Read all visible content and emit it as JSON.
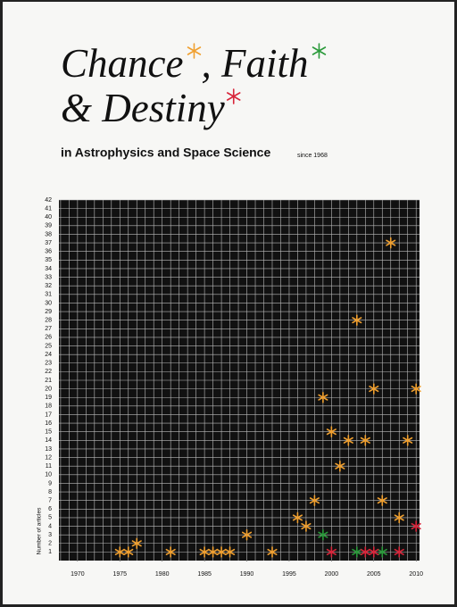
{
  "chart_data": {
    "type": "scatter",
    "title_lines": [
      "Chance",
      ", Faith",
      "& Destiny"
    ],
    "subtitle": "in Astrophysics and Space Science",
    "note": "since 1968",
    "ylabel": "Number of articles",
    "marker": "asterisk",
    "series": [
      {
        "color": "#f0a030",
        "x": [
          1975,
          1976,
          1977,
          1981,
          1985,
          1986,
          1987,
          1988,
          1990,
          1993,
          1996,
          1997,
          1998,
          1999,
          2000,
          2001,
          2002,
          2003,
          2004,
          2005,
          2006,
          2007,
          2008,
          2009,
          2010
        ],
        "values": [
          1,
          1,
          2,
          1,
          1,
          1,
          1,
          1,
          3,
          1,
          5,
          4,
          7,
          19,
          15,
          11,
          14,
          28,
          14,
          20,
          7,
          37,
          5,
          14,
          20
        ]
      },
      {
        "color": "#2a9a3a",
        "x": [
          1999,
          2003,
          2006
        ],
        "values": [
          3,
          1,
          1
        ]
      },
      {
        "color": "#d8253a",
        "x": [
          2000,
          2004,
          2005,
          2008,
          2010
        ],
        "values": [
          1,
          1,
          1,
          1,
          4
        ]
      }
    ],
    "xlim": [
      1967.8,
      2010.4
    ],
    "xticks": [
      1970,
      1975,
      1980,
      1985,
      1990,
      1995,
      2000,
      2005,
      2010
    ],
    "ylim": [
      0,
      42
    ],
    "yticks": [
      1,
      2,
      3,
      4,
      5,
      6,
      7,
      8,
      9,
      10,
      11,
      12,
      13,
      14,
      15,
      16,
      17,
      18,
      19,
      20,
      21,
      22,
      23,
      24,
      25,
      26,
      27,
      28,
      29,
      30,
      31,
      32,
      33,
      34,
      35,
      36,
      37,
      38,
      39,
      40,
      41,
      42
    ],
    "grid": true
  }
}
